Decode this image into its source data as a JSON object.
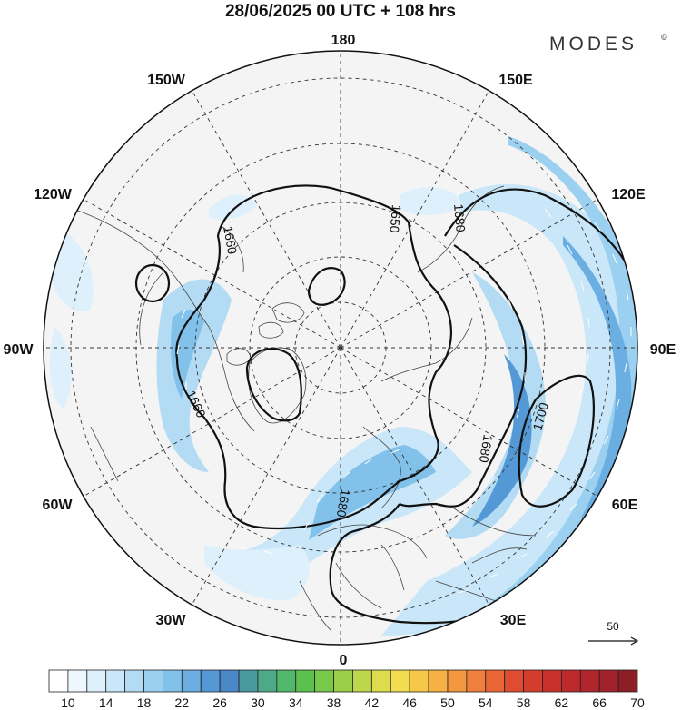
{
  "header": {
    "title": "28/06/2025  00 UTC  + 108 hrs",
    "brand": "MODES",
    "brand_mark": "©"
  },
  "map": {
    "projection": "polar stereographic (north pole)",
    "longitude_labels": {
      "top": "180",
      "top_left": "150W",
      "top_right": "150E",
      "upper_left": "120W",
      "upper_right": "120E",
      "left": "90W",
      "right": "90E",
      "lower_left": "60W",
      "lower_right": "60E",
      "bottom_left": "30W",
      "bottom_right": "30E",
      "bottom": "0"
    },
    "contour_labels": {
      "c1": "1660",
      "c2": "1650",
      "c3": "1680",
      "c4": "1660",
      "c5": "1680",
      "c6": "1680",
      "c7": "1700"
    },
    "reference_vector": {
      "value": "50"
    }
  },
  "colorbar": {
    "ticks": [
      "10",
      "14",
      "18",
      "22",
      "26",
      "30",
      "34",
      "38",
      "42",
      "46",
      "50",
      "54",
      "58",
      "62",
      "66",
      "70"
    ],
    "colors": [
      "#ffffff",
      "#eef7fd",
      "#ddf0fb",
      "#c9e7f8",
      "#b3dcf4",
      "#9bd0f0",
      "#82c1ea",
      "#6aaee2",
      "#5499d6",
      "#4a88c8",
      "#4a98a0",
      "#4caa88",
      "#4fb86a",
      "#5cc04c",
      "#78c84a",
      "#9ccf48",
      "#bed64a",
      "#dcdc4c",
      "#f2dc50",
      "#f6c84a",
      "#f6b044",
      "#f49840",
      "#f07e3c",
      "#ea6636",
      "#e04c32",
      "#d43c2e",
      "#c8302c",
      "#bc2a2c",
      "#b0262c",
      "#a0222a",
      "#8e1e26"
    ]
  }
}
